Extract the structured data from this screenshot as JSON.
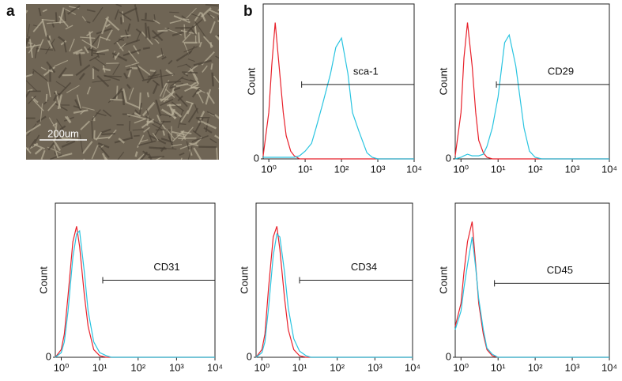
{
  "panel_labels": {
    "a": "a",
    "b": "b"
  },
  "scale_bar": "200um",
  "chart_data": [
    {
      "type": "line",
      "y_label": "Count",
      "log_x": true,
      "marker": {
        "label": "sca-1",
        "x": [
          8,
          10000
        ],
        "y": 48
      },
      "x": [
        0.7,
        1,
        1.2,
        1.5,
        2,
        2.5,
        3,
        4,
        5,
        7,
        10,
        15,
        20,
        30,
        50,
        70,
        100,
        150,
        200,
        300,
        500,
        700,
        1000,
        10000
      ],
      "series": [
        {
          "color": "#e8202a",
          "values": [
            2,
            30,
            60,
            88,
            55,
            30,
            15,
            5,
            2,
            0,
            0,
            0,
            0,
            0,
            0,
            0,
            0,
            0,
            0,
            0,
            0,
            0,
            0,
            0
          ]
        },
        {
          "color": "#29c4e0",
          "values": [
            1,
            1,
            1,
            1,
            1,
            1,
            1,
            1,
            1,
            2,
            5,
            10,
            20,
            35,
            55,
            72,
            78,
            55,
            30,
            18,
            4,
            1,
            0,
            0
          ]
        }
      ],
      "xlim": [
        0.7,
        10000
      ],
      "ylim": [
        0,
        100
      ],
      "xticks": [
        {
          "value": 1,
          "label": "10⁰"
        },
        {
          "value": 10,
          "label": "10¹"
        },
        {
          "value": 100,
          "label": "10²"
        },
        {
          "value": 1000,
          "label": "10³"
        },
        {
          "value": 10000,
          "label": "10⁴"
        }
      ],
      "yticks": [
        0
      ]
    },
    {
      "type": "line",
      "y_label": "Count",
      "log_x": true,
      "marker": {
        "label": "CD29",
        "x": [
          9,
          10000
        ],
        "y": 48
      },
      "x": [
        0.7,
        1,
        1.2,
        1.5,
        2,
        2.5,
        3,
        4,
        5,
        7,
        10,
        15,
        20,
        30,
        50,
        70,
        100,
        150,
        200,
        300,
        500,
        700,
        1000,
        10000
      ],
      "series": [
        {
          "color": "#e8202a",
          "values": [
            2,
            30,
            65,
            88,
            60,
            30,
            12,
            4,
            1,
            0,
            0,
            0,
            0,
            0,
            0,
            0,
            0,
            0,
            0,
            0,
            0,
            0,
            0,
            0
          ]
        },
        {
          "color": "#29c4e0",
          "values": [
            0,
            1,
            2,
            3,
            2,
            2,
            2,
            3,
            8,
            20,
            40,
            75,
            80,
            60,
            20,
            5,
            1,
            0,
            0,
            0,
            0,
            0,
            0,
            0
          ]
        }
      ],
      "xlim": [
        0.7,
        10000
      ],
      "ylim": [
        0,
        100
      ],
      "xticks": [
        {
          "value": 1,
          "label": "10⁰"
        },
        {
          "value": 10,
          "label": "10¹"
        },
        {
          "value": 100,
          "label": "10²"
        },
        {
          "value": 1000,
          "label": "10³"
        },
        {
          "value": 10000,
          "label": "10⁴"
        }
      ],
      "yticks": [
        0
      ]
    },
    {
      "type": "line",
      "y_label": "Count",
      "log_x": true,
      "marker": {
        "label": "CD31",
        "x": [
          12,
          10000
        ],
        "y": 50
      },
      "x": [
        0.7,
        1,
        1.2,
        1.5,
        2,
        2.5,
        3,
        4,
        5,
        7,
        10,
        15,
        20,
        30,
        50,
        70,
        100,
        150,
        200,
        300,
        500,
        700,
        1000,
        10000
      ],
      "series": [
        {
          "color": "#e8202a",
          "values": [
            0,
            5,
            15,
            40,
            75,
            85,
            72,
            40,
            20,
            5,
            1,
            0,
            0,
            0,
            0,
            0,
            0,
            0,
            0,
            0,
            0,
            0,
            0,
            0
          ]
        },
        {
          "color": "#29c4e0",
          "values": [
            0,
            3,
            10,
            30,
            65,
            80,
            82,
            55,
            30,
            10,
            3,
            1,
            0,
            0,
            0,
            0,
            0,
            0,
            0,
            0,
            0,
            0,
            0,
            0
          ]
        }
      ],
      "xlim": [
        0.7,
        10000
      ],
      "ylim": [
        0,
        100
      ],
      "xticks": [
        {
          "value": 1,
          "label": "10⁰"
        },
        {
          "value": 10,
          "label": "10¹"
        },
        {
          "value": 100,
          "label": "10²"
        },
        {
          "value": 1000,
          "label": "10³"
        },
        {
          "value": 10000,
          "label": "10⁴"
        }
      ],
      "yticks": [
        0
      ]
    },
    {
      "type": "line",
      "y_label": "Count",
      "log_x": true,
      "marker": {
        "label": "CD34",
        "x": [
          10,
          10000
        ],
        "y": 50
      },
      "x": [
        0.7,
        1,
        1.2,
        1.5,
        2,
        2.5,
        3,
        4,
        5,
        7,
        10,
        15,
        20,
        30,
        50,
        70,
        100,
        150,
        200,
        300,
        500,
        700,
        1000,
        10000
      ],
      "series": [
        {
          "color": "#e8202a",
          "values": [
            0,
            5,
            15,
            45,
            78,
            85,
            70,
            38,
            18,
            5,
            1,
            0,
            0,
            0,
            0,
            0,
            0,
            0,
            0,
            0,
            0,
            0,
            0,
            0
          ]
        },
        {
          "color": "#29c4e0",
          "values": [
            0,
            3,
            10,
            32,
            66,
            80,
            78,
            55,
            32,
            12,
            4,
            1,
            0,
            0,
            0,
            0,
            0,
            0,
            0,
            0,
            0,
            0,
            0,
            0
          ]
        }
      ],
      "xlim": [
        0.7,
        10000
      ],
      "ylim": [
        0,
        100
      ],
      "xticks": [
        {
          "value": 1,
          "label": "10⁰"
        },
        {
          "value": 10,
          "label": "10¹"
        },
        {
          "value": 100,
          "label": "10²"
        },
        {
          "value": 1000,
          "label": "10³"
        },
        {
          "value": 10000,
          "label": "10⁴"
        }
      ],
      "yticks": [
        0
      ]
    },
    {
      "type": "line",
      "y_label": "Count",
      "log_x": true,
      "marker": {
        "label": "CD45",
        "x": [
          8,
          10000
        ],
        "y": 48
      },
      "x": [
        0.7,
        1,
        1.2,
        1.5,
        2,
        2.5,
        3,
        4,
        5,
        7,
        10,
        15,
        20,
        30,
        50,
        70,
        100,
        150,
        200,
        300,
        500,
        700,
        1000,
        10000
      ],
      "series": [
        {
          "color": "#e8202a",
          "values": [
            20,
            35,
            55,
            75,
            88,
            60,
            35,
            15,
            5,
            1,
            0,
            0,
            0,
            0,
            0,
            0,
            0,
            0,
            0,
            0,
            0,
            0,
            0,
            0
          ]
        },
        {
          "color": "#29c4e0",
          "values": [
            18,
            30,
            45,
            60,
            78,
            58,
            38,
            18,
            6,
            2,
            0,
            0,
            0,
            0,
            0,
            0,
            0,
            0,
            0,
            0,
            0,
            0,
            0,
            0
          ]
        }
      ],
      "xlim": [
        0.7,
        10000
      ],
      "ylim": [
        0,
        100
      ],
      "xticks": [
        {
          "value": 1,
          "label": "10⁰"
        },
        {
          "value": 10,
          "label": "10¹"
        },
        {
          "value": 100,
          "label": "10²"
        },
        {
          "value": 1000,
          "label": "10³"
        },
        {
          "value": 10000,
          "label": "10⁴"
        }
      ],
      "yticks": [
        0
      ]
    }
  ]
}
